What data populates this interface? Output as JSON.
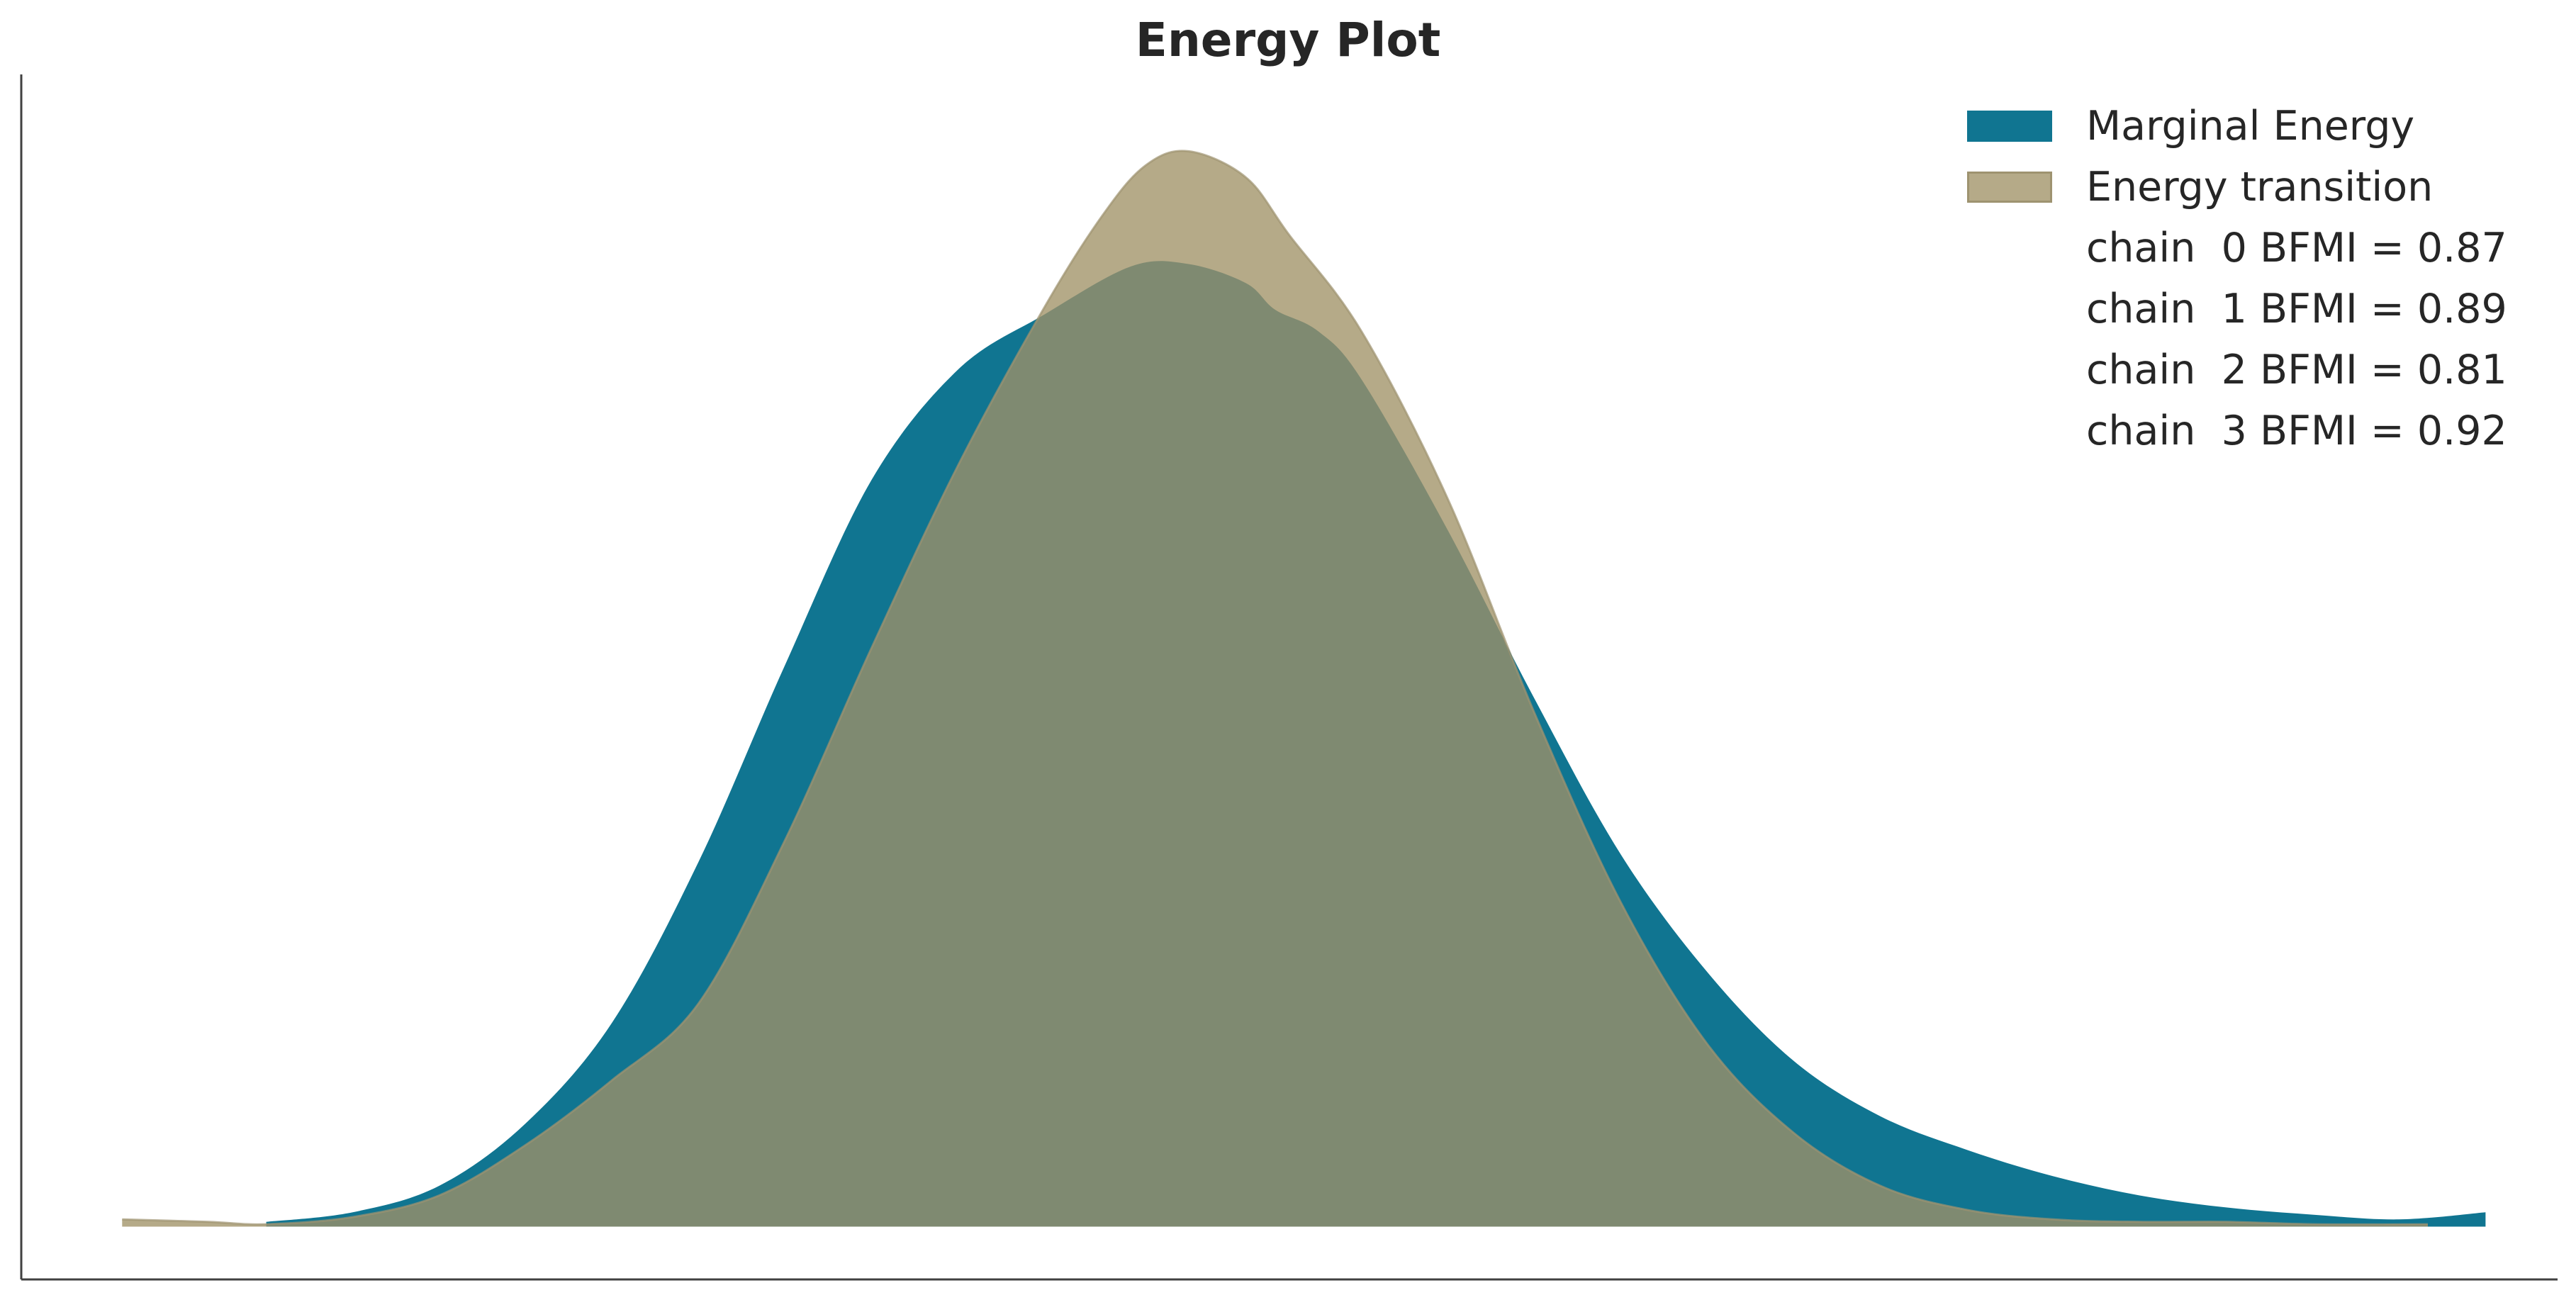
{
  "chart_data": {
    "type": "area",
    "title": "Energy Plot",
    "xlabel": "",
    "ylabel": "",
    "x_ticks_visible": false,
    "y_ticks_visible": false,
    "grid": false,
    "legend_position": "top-right",
    "xlim": [
      -4.35,
      4.45
    ],
    "ylim": [
      -0.022,
      0.48
    ],
    "series": [
      {
        "name": "Marginal Energy",
        "color": "#107591",
        "x": [
          -3.5,
          -3.2,
          -2.9,
          -2.6,
          -2.3,
          -2.0,
          -1.7,
          -1.4,
          -1.1,
          -0.8,
          -0.5,
          -0.3,
          -0.1,
          0.0,
          0.15,
          0.3,
          0.6,
          0.9,
          1.2,
          1.5,
          1.8,
          2.1,
          2.4,
          2.7,
          3.0,
          3.3,
          3.6,
          3.9,
          4.2
        ],
        "y": [
          0.002,
          0.006,
          0.017,
          0.043,
          0.085,
          0.152,
          0.234,
          0.311,
          0.357,
          0.38,
          0.4,
          0.401,
          0.393,
          0.382,
          0.373,
          0.353,
          0.29,
          0.22,
          0.155,
          0.106,
          0.069,
          0.046,
          0.032,
          0.021,
          0.013,
          0.008,
          0.005,
          0.003,
          0.006
        ]
      },
      {
        "name": "Energy transition",
        "color": "#b5aa88",
        "x": [
          -4.0,
          -3.7,
          -3.5,
          -3.2,
          -2.9,
          -2.6,
          -2.3,
          -2.0,
          -1.7,
          -1.4,
          -1.1,
          -0.8,
          -0.6,
          -0.45,
          -0.3,
          -0.1,
          0.05,
          0.3,
          0.6,
          0.9,
          1.2,
          1.5,
          1.8,
          2.1,
          2.4,
          2.7,
          3.0,
          3.3,
          3.6,
          4.0
        ],
        "y": [
          0.003,
          0.002,
          0.001,
          0.004,
          0.013,
          0.034,
          0.061,
          0.093,
          0.161,
          0.241,
          0.317,
          0.383,
          0.421,
          0.442,
          0.448,
          0.437,
          0.413,
          0.373,
          0.303,
          0.214,
          0.135,
          0.076,
          0.039,
          0.017,
          0.007,
          0.003,
          0.002,
          0.002,
          0.001,
          0.001
        ]
      }
    ],
    "legend_entries": [
      {
        "label": "Marginal Energy",
        "color": "#107591",
        "swatch": true
      },
      {
        "label": "Energy transition",
        "color": "#b5aa88",
        "swatch": true
      },
      {
        "label": "chain  0 BFMI = 0.87",
        "swatch": false
      },
      {
        "label": "chain  1 BFMI = 0.89",
        "swatch": false
      },
      {
        "label": "chain  2 BFMI = 0.81",
        "swatch": false
      },
      {
        "label": "chain  3 BFMI = 0.92",
        "swatch": false
      }
    ],
    "overlap_color": "#7f8a71",
    "axis_color": "#404040"
  }
}
